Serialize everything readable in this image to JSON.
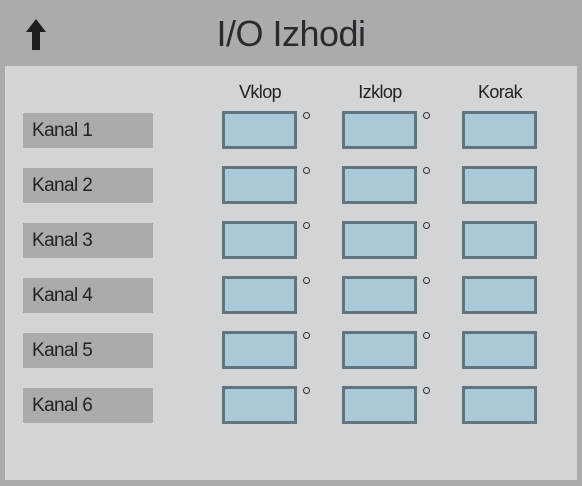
{
  "header": {
    "title": "I/O Izhodi",
    "back_icon": "up-arrow-icon"
  },
  "columns": [
    "Vklop",
    "Izklop",
    "Korak"
  ],
  "rows": [
    {
      "label": "Kanal 1",
      "vklop": "",
      "izklop": "",
      "korak": ""
    },
    {
      "label": "Kanal 2",
      "vklop": "",
      "izklop": "",
      "korak": ""
    },
    {
      "label": "Kanal 3",
      "vklop": "",
      "izklop": "",
      "korak": ""
    },
    {
      "label": "Kanal 4",
      "vklop": "",
      "izklop": "",
      "korak": ""
    },
    {
      "label": "Kanal 5",
      "vklop": "",
      "izklop": "",
      "korak": ""
    },
    {
      "label": "Kanal 6",
      "vklop": "",
      "izklop": "",
      "korak": ""
    }
  ],
  "colors": {
    "background": "#a9abae",
    "panel": "#d3d4d6",
    "field_fill": "#a9c9d8",
    "field_border": "#62757f"
  }
}
